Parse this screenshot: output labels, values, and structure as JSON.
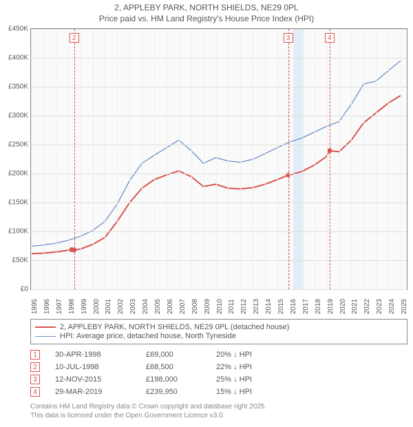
{
  "title": {
    "line1": "2, APPLEBY PARK, NORTH SHIELDS, NE29 0PL",
    "line2": "Price paid vs. HM Land Registry's House Price Index (HPI)"
  },
  "chart": {
    "type": "line",
    "background_color": "#fafafa",
    "grid_color": "#dddddd",
    "axis_color": "#888888",
    "label_fontsize": 10,
    "label_color": "#555555",
    "x": {
      "min": 1995,
      "max": 2025.5,
      "ticks": [
        1995,
        1996,
        1997,
        1998,
        1999,
        2000,
        2001,
        2002,
        2003,
        2004,
        2005,
        2006,
        2007,
        2008,
        2009,
        2010,
        2011,
        2012,
        2013,
        2014,
        2015,
        2016,
        2017,
        2018,
        2019,
        2020,
        2021,
        2022,
        2023,
        2024,
        2025
      ]
    },
    "y": {
      "min": 0,
      "max": 450000,
      "ticks": [
        0,
        50000,
        100000,
        150000,
        200000,
        250000,
        300000,
        350000,
        400000,
        450000
      ],
      "prefix": "£",
      "suffix_k": true
    },
    "series": [
      {
        "id": "price_paid",
        "label": "2, APPLEBY PARK, NORTH SHIELDS, NE29 0PL (detached house)",
        "color": "#d9534f",
        "width": 2,
        "data": [
          [
            1995,
            62000
          ],
          [
            1996,
            63000
          ],
          [
            1997,
            65000
          ],
          [
            1998,
            68000
          ],
          [
            1998.3,
            69000
          ],
          [
            1998.5,
            68500
          ],
          [
            1999,
            70000
          ],
          [
            2000,
            78000
          ],
          [
            2001,
            90000
          ],
          [
            2002,
            118000
          ],
          [
            2003,
            150000
          ],
          [
            2004,
            175000
          ],
          [
            2005,
            190000
          ],
          [
            2006,
            198000
          ],
          [
            2007,
            205000
          ],
          [
            2008,
            195000
          ],
          [
            2009,
            178000
          ],
          [
            2010,
            182000
          ],
          [
            2011,
            175000
          ],
          [
            2012,
            174000
          ],
          [
            2013,
            176000
          ],
          [
            2014,
            182000
          ],
          [
            2015,
            190000
          ],
          [
            2015.9,
            198000
          ],
          [
            2016,
            198000
          ],
          [
            2017,
            204000
          ],
          [
            2018,
            215000
          ],
          [
            2019,
            230000
          ],
          [
            2019.2,
            239950
          ],
          [
            2020,
            238000
          ],
          [
            2021,
            258000
          ],
          [
            2022,
            288000
          ],
          [
            2023,
            305000
          ],
          [
            2024,
            322000
          ],
          [
            2025,
            335000
          ]
        ]
      },
      {
        "id": "hpi",
        "label": "HPI: Average price, detached house, North Tyneside",
        "color": "#6a8fc7",
        "width": 1.3,
        "data": [
          [
            1995,
            75000
          ],
          [
            1996,
            77000
          ],
          [
            1997,
            80000
          ],
          [
            1998,
            85000
          ],
          [
            1999,
            92000
          ],
          [
            2000,
            102000
          ],
          [
            2001,
            118000
          ],
          [
            2002,
            148000
          ],
          [
            2003,
            188000
          ],
          [
            2004,
            218000
          ],
          [
            2005,
            232000
          ],
          [
            2006,
            245000
          ],
          [
            2007,
            258000
          ],
          [
            2008,
            240000
          ],
          [
            2009,
            218000
          ],
          [
            2010,
            228000
          ],
          [
            2011,
            222000
          ],
          [
            2012,
            220000
          ],
          [
            2013,
            225000
          ],
          [
            2014,
            235000
          ],
          [
            2015,
            245000
          ],
          [
            2016,
            255000
          ],
          [
            2017,
            262000
          ],
          [
            2018,
            272000
          ],
          [
            2019,
            282000
          ],
          [
            2020,
            290000
          ],
          [
            2021,
            320000
          ],
          [
            2022,
            355000
          ],
          [
            2023,
            360000
          ],
          [
            2024,
            378000
          ],
          [
            2025,
            395000
          ]
        ]
      }
    ],
    "markers": [
      {
        "x": 1998.3,
        "y": 69000
      },
      {
        "x": 1998.5,
        "y": 68500
      },
      {
        "x": 2015.87,
        "y": 198000
      },
      {
        "x": 2019.24,
        "y": 239950
      }
    ],
    "event_band": {
      "from": 2016.3,
      "to": 2017.1,
      "color": "#e3edf7"
    },
    "event_lines": [
      {
        "num": "2",
        "x": 1998.5
      },
      {
        "num": "3",
        "x": 2015.87
      },
      {
        "num": "4",
        "x": 2019.24
      }
    ]
  },
  "legend": {
    "items": [
      {
        "color": "#d9534f",
        "width": 2,
        "text": "2, APPLEBY PARK, NORTH SHIELDS, NE29 0PL (detached house)"
      },
      {
        "color": "#6a8fc7",
        "width": 1.3,
        "text": "HPI: Average price, detached house, North Tyneside"
      }
    ]
  },
  "events": [
    {
      "num": "1",
      "date": "30-APR-1998",
      "price": "£69,000",
      "pct": "20% ↓ HPI"
    },
    {
      "num": "2",
      "date": "10-JUL-1998",
      "price": "£68,500",
      "pct": "22% ↓ HPI"
    },
    {
      "num": "3",
      "date": "12-NOV-2015",
      "price": "£198,000",
      "pct": "25% ↓ HPI"
    },
    {
      "num": "4",
      "date": "29-MAR-2019",
      "price": "£239,950",
      "pct": "15% ↓ HPI"
    }
  ],
  "footer": {
    "line1": "Contains HM Land Registry data © Crown copyright and database right 2025.",
    "line2": "This data is licensed under the Open Government Licence v3.0."
  }
}
